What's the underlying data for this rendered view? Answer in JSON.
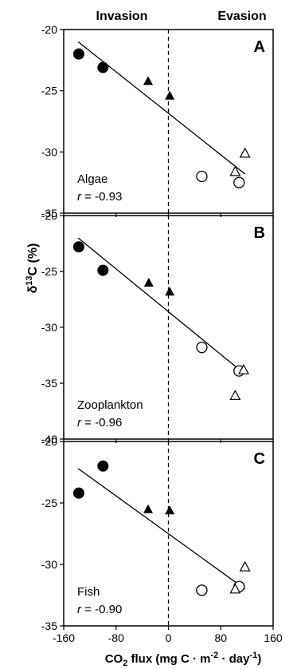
{
  "header": {
    "left": "Invasion",
    "right": "Evasion"
  },
  "y_axis_label": {
    "delta": "δ",
    "sup": "13",
    "rest": "C (%)"
  },
  "x_axis_label": {
    "pre": "CO",
    "sub": "2",
    "mid": " flux (mg C · m",
    "sup1": "-2",
    "mid2": " · day",
    "sup2": "-1",
    "post": ")"
  },
  "chart_data": [
    {
      "type": "scatter",
      "panel": "A",
      "organism": "Algae",
      "r_label": "r",
      "r_value": " = -0.93",
      "xlim": [
        -160,
        160
      ],
      "ylim": [
        -35,
        -20
      ],
      "yticks": [
        -20,
        -25,
        -30,
        -35
      ],
      "xticks": [],
      "grid": false,
      "series": [
        {
          "marker": "filled-circle",
          "points": [
            [
              -137,
              -22.0
            ],
            [
              -100,
              -23.1
            ]
          ]
        },
        {
          "marker": "filled-triangle",
          "points": [
            [
              -31,
              -24.2
            ],
            [
              2,
              -25.4
            ]
          ]
        },
        {
          "marker": "open-circle",
          "points": [
            [
              51,
              -32.0
            ],
            [
              108,
              -32.5
            ]
          ]
        },
        {
          "marker": "open-triangle",
          "points": [
            [
              102,
              -31.6
            ],
            [
              117,
              -30.1
            ]
          ]
        }
      ],
      "fit": {
        "x": [
          -138,
          117
        ],
        "y": [
          -21.0,
          -31.8
        ]
      }
    },
    {
      "type": "scatter",
      "panel": "B",
      "organism": "Zooplankton",
      "r_label": "r",
      "r_value": " = -0.96",
      "xlim": [
        -160,
        160
      ],
      "ylim": [
        -40,
        -20
      ],
      "yticks": [
        -20,
        -25,
        -30,
        -35,
        -40
      ],
      "xticks": [],
      "grid": false,
      "series": [
        {
          "marker": "filled-circle",
          "points": [
            [
              -137,
              -22.8
            ],
            [
              -100,
              -24.9
            ]
          ]
        },
        {
          "marker": "filled-triangle",
          "points": [
            [
              -30,
              -26.0
            ],
            [
              2,
              -26.8
            ]
          ]
        },
        {
          "marker": "open-circle",
          "points": [
            [
              51,
              -31.8
            ],
            [
              108,
              -33.9
            ]
          ]
        },
        {
          "marker": "open-triangle",
          "points": [
            [
              102,
              -36.1
            ],
            [
              115,
              -33.8
            ]
          ]
        }
      ],
      "fit": {
        "x": [
          -138,
          117
        ],
        "y": [
          -22.0,
          -34.2
        ]
      }
    },
    {
      "type": "scatter",
      "panel": "C",
      "organism": "Fish",
      "r_label": "r",
      "r_value": " = -0.90",
      "xlim": [
        -160,
        160
      ],
      "ylim": [
        -35,
        -20
      ],
      "yticks": [
        -20,
        -25,
        -30,
        -35
      ],
      "xticks": [
        -160,
        -80,
        0,
        80,
        160
      ],
      "grid": false,
      "series": [
        {
          "marker": "filled-circle",
          "points": [
            [
              -137,
              -24.2
            ],
            [
              -100,
              -22.0
            ]
          ]
        },
        {
          "marker": "filled-triangle",
          "points": [
            [
              -31,
              -25.5
            ],
            [
              2,
              -25.6
            ]
          ]
        },
        {
          "marker": "open-circle",
          "points": [
            [
              51,
              -32.1
            ],
            [
              108,
              -31.8
            ]
          ]
        },
        {
          "marker": "open-triangle",
          "points": [
            [
              102,
              -32.0
            ],
            [
              117,
              -30.2
            ]
          ]
        }
      ],
      "fit": {
        "x": [
          -138,
          117
        ],
        "y": [
          -22.2,
          -32.0
        ]
      }
    }
  ]
}
